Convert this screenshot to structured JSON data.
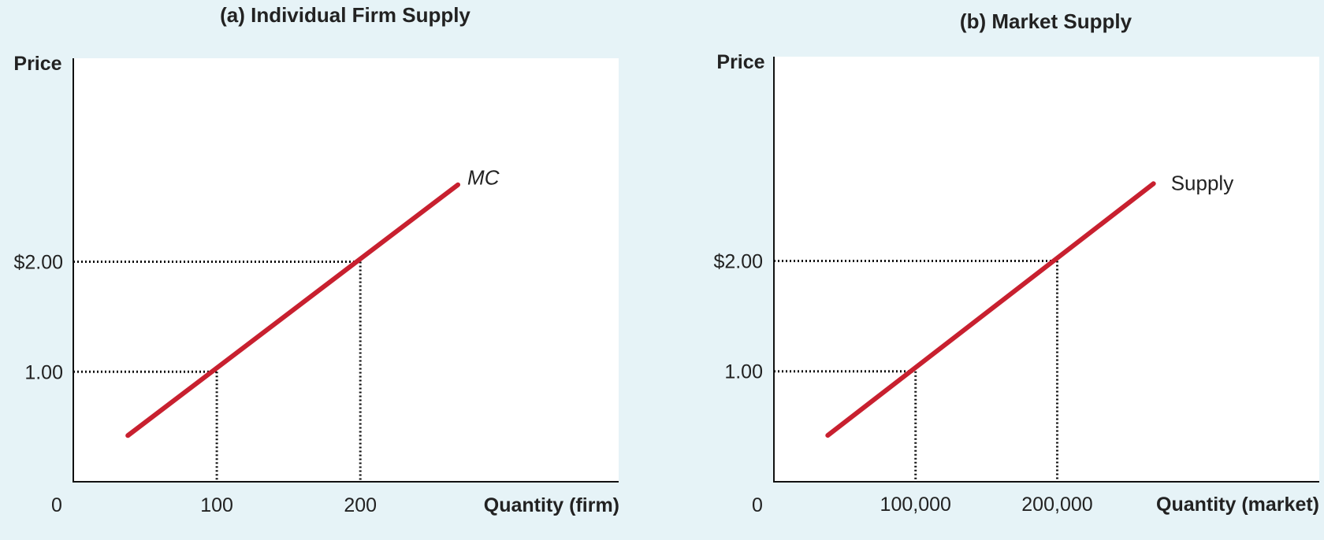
{
  "colors": {
    "background": "#e6f3f7",
    "plot_area": "#ffffff",
    "curve": "#c8202f",
    "axis": "#111111"
  },
  "chart_data": [
    {
      "type": "line",
      "title": "(a) Individual Firm Supply",
      "xlabel": "Quantity (firm)",
      "ylabel": "Price",
      "origin_label": "0",
      "x_ticks": [
        {
          "value": 100,
          "label": "100"
        },
        {
          "value": 200,
          "label": "200"
        }
      ],
      "y_ticks": [
        {
          "value": 1.0,
          "label": "1.00"
        },
        {
          "value": 2.0,
          "label": "$2.00"
        }
      ],
      "xlim": [
        0,
        380
      ],
      "ylim": [
        0,
        3.85
      ],
      "series": [
        {
          "name": "MC",
          "points": [
            {
              "x": 38,
              "y": 0.42
            },
            {
              "x": 268,
              "y": 2.7
            }
          ]
        }
      ],
      "reference_points": [
        {
          "x": 100,
          "y": 1.0
        },
        {
          "x": 200,
          "y": 2.0
        }
      ],
      "grid": false
    },
    {
      "type": "line",
      "title": "(b) Market Supply",
      "xlabel": "Quantity (market)",
      "ylabel": "Price",
      "origin_label": "0",
      "x_ticks": [
        {
          "value": 100000,
          "label": "100,000"
        },
        {
          "value": 200000,
          "label": "200,000"
        }
      ],
      "y_ticks": [
        {
          "value": 1.0,
          "label": "1.00"
        },
        {
          "value": 2.0,
          "label": "$2.00"
        }
      ],
      "xlim": [
        0,
        385000
      ],
      "ylim": [
        0,
        3.85
      ],
      "series": [
        {
          "name": "Supply",
          "points": [
            {
              "x": 38000,
              "y": 0.42
            },
            {
              "x": 268000,
              "y": 2.7
            }
          ]
        }
      ],
      "reference_points": [
        {
          "x": 100000,
          "y": 1.0
        },
        {
          "x": 200000,
          "y": 2.0
        }
      ],
      "grid": false
    }
  ]
}
